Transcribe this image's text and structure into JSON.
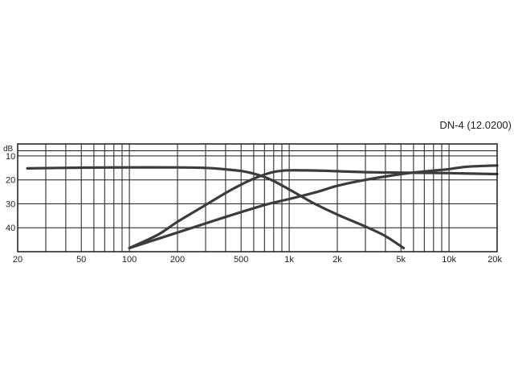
{
  "chart_data": {
    "type": "line",
    "title": "DN-4 (12.0200)",
    "x_scale": "log",
    "xlim": [
      20,
      20000
    ],
    "y_reversed": true,
    "ylim": [
      5,
      50
    ],
    "y_unit_label": "dB",
    "grid": true,
    "x_ticks": [
      {
        "value": 20,
        "label": "20"
      },
      {
        "value": 50,
        "label": "50"
      },
      {
        "value": 100,
        "label": "100"
      },
      {
        "value": 200,
        "label": "200"
      },
      {
        "value": 500,
        "label": "500"
      },
      {
        "value": 1000,
        "label": "1k"
      },
      {
        "value": 2000,
        "label": "2k"
      },
      {
        "value": 5000,
        "label": "5k"
      },
      {
        "value": 10000,
        "label": "10k"
      },
      {
        "value": 20000,
        "label": "20k"
      }
    ],
    "y_ticks": [
      {
        "value": 10,
        "label": "10"
      },
      {
        "value": 20,
        "label": "20"
      },
      {
        "value": 30,
        "label": "30"
      },
      {
        "value": 40,
        "label": "40"
      }
    ],
    "colors": {
      "grid": "#1a1a1a",
      "curves": "#3c3c3c",
      "text": "#222222"
    },
    "series": [
      {
        "x": [
          23,
          50,
          100,
          200,
          300,
          400,
          500,
          600,
          700,
          800,
          1000,
          1400,
          2000,
          3000,
          4000,
          5200
        ],
        "y": [
          15.2,
          14.9,
          14.8,
          14.8,
          15.0,
          15.6,
          16.3,
          17.4,
          18.8,
          20.5,
          24.0,
          29.5,
          34.5,
          39.5,
          43.5,
          48.5
        ]
      },
      {
        "x": [
          100,
          150,
          200,
          300,
          400,
          500,
          600,
          700,
          800,
          900,
          1000,
          1500,
          2000,
          3000,
          5000,
          7000,
          10000,
          20000
        ],
        "y": [
          48.5,
          43.0,
          37.5,
          30.5,
          25.5,
          22.0,
          19.5,
          17.8,
          16.7,
          16.2,
          16.0,
          16.1,
          16.4,
          16.8,
          17.0,
          17.1,
          17.2,
          17.6
        ]
      },
      {
        "x": [
          100,
          200,
          400,
          700,
          1000,
          1500,
          2000,
          3000,
          5000,
          7000,
          10000,
          13000,
          20000
        ],
        "y": [
          48.5,
          42.0,
          35.5,
          30.5,
          28.0,
          25.0,
          22.5,
          20.0,
          17.6,
          16.5,
          15.5,
          14.5,
          14.0
        ]
      }
    ]
  }
}
